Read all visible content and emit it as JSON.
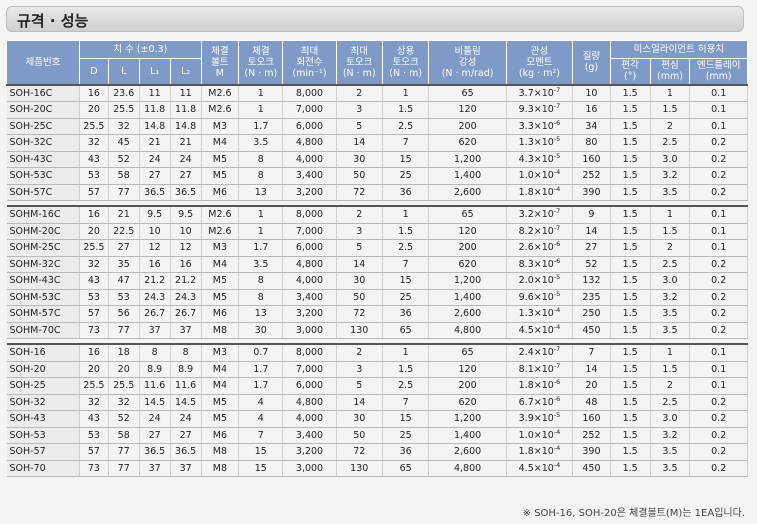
{
  "title": "규격 · 성능",
  "headers": {
    "model": "제품번호",
    "dims": "치 수 (±0.3)",
    "d": "D",
    "l": "L",
    "l1": "L₁",
    "l2": "L₂",
    "bolt": [
      "체결",
      "볼트",
      "M"
    ],
    "torque": [
      "체결",
      "토오크",
      "(N · m)"
    ],
    "maxrpm": [
      "최대",
      "회전수",
      "(min⁻¹)"
    ],
    "maxtorque": [
      "최대",
      "토오크",
      "(N · m)"
    ],
    "ratedtorque": [
      "상용",
      "토오크",
      "(N · m)"
    ],
    "stiffness": [
      "비틀림",
      "강성",
      "(N · m/rad)"
    ],
    "inertia": [
      "관성",
      "모멘트",
      "(kg · m²)"
    ],
    "mass": [
      "질량",
      "(g)"
    ],
    "misalign": "미스얼라이먼트 허용치",
    "angular": [
      "편각",
      "(°)"
    ],
    "parallel": [
      "편심",
      "(mm)"
    ],
    "endplay": [
      "엔드플레이",
      "(mm)"
    ]
  },
  "groups": [
    [
      [
        "SOH-16C",
        "16",
        "23.6",
        "11",
        "11",
        "M2.6",
        "1",
        "8,000",
        "2",
        "1",
        "65",
        "3.7",
        "-7",
        "10",
        "1.5",
        "1",
        "0.1"
      ],
      [
        "SOH-20C",
        "20",
        "25.5",
        "11.8",
        "11.8",
        "M2.6",
        "1",
        "7,000",
        "3",
        "1.5",
        "120",
        "9.3",
        "-7",
        "16",
        "1.5",
        "1.5",
        "0.1"
      ],
      [
        "SOH-25C",
        "25.5",
        "32",
        "14.8",
        "14.8",
        "M3",
        "1.7",
        "6,000",
        "5",
        "2.5",
        "200",
        "3.3",
        "-6",
        "34",
        "1.5",
        "2",
        "0.1"
      ],
      [
        "SOH-32C",
        "32",
        "45",
        "21",
        "21",
        "M4",
        "3.5",
        "4,800",
        "14",
        "7",
        "620",
        "1.3",
        "-5",
        "80",
        "1.5",
        "2.5",
        "0.2"
      ],
      [
        "SOH-43C",
        "43",
        "52",
        "24",
        "24",
        "M5",
        "8",
        "4,000",
        "30",
        "15",
        "1,200",
        "4.3",
        "-5",
        "160",
        "1.5",
        "3.0",
        "0.2"
      ],
      [
        "SOH-53C",
        "53",
        "58",
        "27",
        "27",
        "M5",
        "8",
        "3,400",
        "50",
        "25",
        "1,400",
        "1.0",
        "-4",
        "252",
        "1.5",
        "3.2",
        "0.2"
      ],
      [
        "SOH-57C",
        "57",
        "77",
        "36.5",
        "36.5",
        "M6",
        "13",
        "3,200",
        "72",
        "36",
        "2,600",
        "1.8",
        "-4",
        "390",
        "1.5",
        "3.5",
        "0.2"
      ]
    ],
    [
      [
        "SOHM-16C",
        "16",
        "21",
        "9.5",
        "9.5",
        "M2.6",
        "1",
        "8,000",
        "2",
        "1",
        "65",
        "3.2",
        "-7",
        "9",
        "1.5",
        "1",
        "0.1"
      ],
      [
        "SOHM-20C",
        "20",
        "22.5",
        "10",
        "10",
        "M2.6",
        "1",
        "7,000",
        "3",
        "1.5",
        "120",
        "8.2",
        "-7",
        "14",
        "1.5",
        "1.5",
        "0.1"
      ],
      [
        "SOHM-25C",
        "25.5",
        "27",
        "12",
        "12",
        "M3",
        "1.7",
        "6,000",
        "5",
        "2.5",
        "200",
        "2.6",
        "-6",
        "27",
        "1.5",
        "2",
        "0.1"
      ],
      [
        "SOHM-32C",
        "32",
        "35",
        "16",
        "16",
        "M4",
        "3.5",
        "4,800",
        "14",
        "7",
        "620",
        "8.3",
        "-6",
        "52",
        "1.5",
        "2.5",
        "0.2"
      ],
      [
        "SOHM-43C",
        "43",
        "47",
        "21.2",
        "21.2",
        "M5",
        "8",
        "4,000",
        "30",
        "15",
        "1,200",
        "2.0",
        "-5",
        "132",
        "1.5",
        "3.0",
        "0.2"
      ],
      [
        "SOHM-53C",
        "53",
        "53",
        "24.3",
        "24.3",
        "M5",
        "8",
        "3,400",
        "50",
        "25",
        "1,400",
        "9.6",
        "-5",
        "235",
        "1.5",
        "3.2",
        "0.2"
      ],
      [
        "SOHM-57C",
        "57",
        "56",
        "26.7",
        "26.7",
        "M6",
        "13",
        "3,200",
        "72",
        "36",
        "2,600",
        "1.3",
        "-4",
        "250",
        "1.5",
        "3.5",
        "0.2"
      ],
      [
        "SOHM-70C",
        "73",
        "77",
        "37",
        "37",
        "M8",
        "30",
        "3,000",
        "130",
        "65",
        "4,800",
        "4.5",
        "-4",
        "450",
        "1.5",
        "3.5",
        "0.2"
      ]
    ],
    [
      [
        "SOH-16",
        "16",
        "18",
        "8",
        "8",
        "M3",
        "0.7",
        "8,000",
        "2",
        "1",
        "65",
        "2.4",
        "-7",
        "7",
        "1.5",
        "1",
        "0.1"
      ],
      [
        "SOH-20",
        "20",
        "20",
        "8.9",
        "8.9",
        "M4",
        "1.7",
        "7,000",
        "3",
        "1.5",
        "120",
        "8.1",
        "-7",
        "14",
        "1.5",
        "1.5",
        "0.1"
      ],
      [
        "SOH-25",
        "25.5",
        "25.5",
        "11.6",
        "11.6",
        "M4",
        "1.7",
        "6,000",
        "5",
        "2.5",
        "200",
        "1.8",
        "-6",
        "20",
        "1.5",
        "2",
        "0.1"
      ],
      [
        "SOH-32",
        "32",
        "32",
        "14.5",
        "14.5",
        "M5",
        "4",
        "4,800",
        "14",
        "7",
        "620",
        "6.7",
        "-6",
        "48",
        "1.5",
        "2.5",
        "0.2"
      ],
      [
        "SOH-43",
        "43",
        "52",
        "24",
        "24",
        "M5",
        "4",
        "4,000",
        "30",
        "15",
        "1,200",
        "3.9",
        "-5",
        "160",
        "1.5",
        "3.0",
        "0.2"
      ],
      [
        "SOH-53",
        "53",
        "58",
        "27",
        "27",
        "M6",
        "7",
        "3,400",
        "50",
        "25",
        "1,400",
        "1.0",
        "-4",
        "252",
        "1.5",
        "3.2",
        "0.2"
      ],
      [
        "SOH-57",
        "57",
        "77",
        "36.5",
        "36.5",
        "M8",
        "15",
        "3,200",
        "72",
        "36",
        "2,600",
        "1.8",
        "-4",
        "390",
        "1.5",
        "3.5",
        "0.2"
      ],
      [
        "SOH-70",
        "73",
        "77",
        "37",
        "37",
        "M8",
        "15",
        "3,000",
        "130",
        "65",
        "4,800",
        "4.5",
        "-4",
        "450",
        "1.5",
        "3.5",
        "0.2"
      ]
    ]
  ],
  "footnote": "※ SOH-16, SOH-20은 체결볼트(M)는 1EA입니다."
}
